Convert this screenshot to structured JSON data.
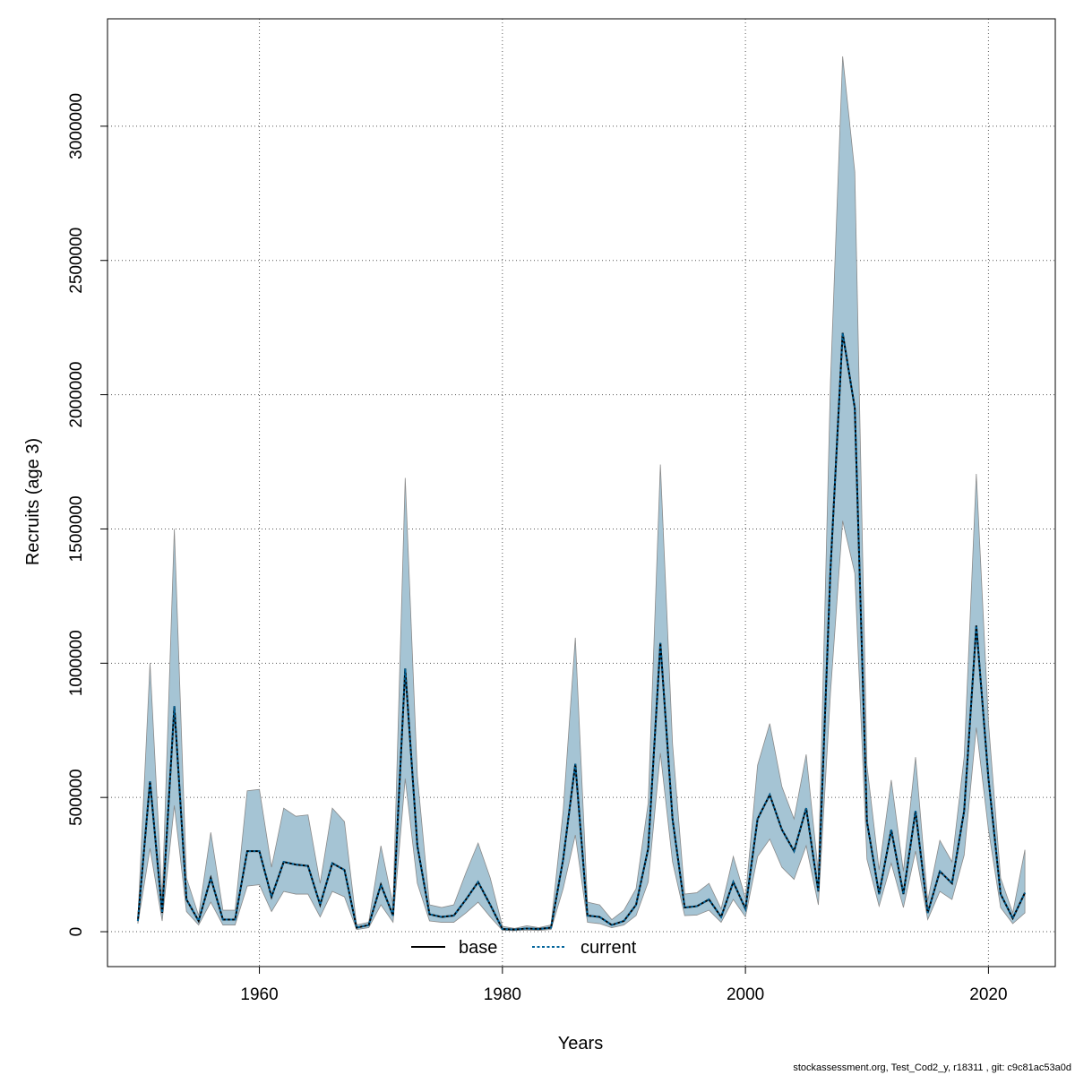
{
  "footer": "stockassessment.org, Test_Cod2_y, r18311 , git: c9c81ac53a0d",
  "colors": {
    "band": "#a5c4d4",
    "band_edge": "#8a8a8a",
    "base": "#000000",
    "current": "#00639a",
    "grid": "#555555"
  },
  "chart_data": {
    "type": "area",
    "xlabel": "Years",
    "ylabel": "Recruits (age 3)",
    "xlim": [
      1947.5,
      2025.5
    ],
    "ylim": [
      -130000,
      3400000
    ],
    "x_ticks": [
      1960,
      1980,
      2000,
      2020
    ],
    "y_ticks": [
      0,
      500000,
      1000000,
      1500000,
      2000000,
      2500000,
      3000000
    ],
    "y_tick_labels": [
      "0",
      "500000",
      "1000000",
      "1500000",
      "2000000",
      "2500000",
      "3000000"
    ],
    "grid": true,
    "legend_position": "bottom-center",
    "legend": [
      {
        "name": "base",
        "style": "solid"
      },
      {
        "name": "current",
        "style": "dotted"
      }
    ],
    "x": [
      1950,
      1951,
      1952,
      1953,
      1954,
      1955,
      1956,
      1957,
      1958,
      1959,
      1960,
      1961,
      1962,
      1963,
      1964,
      1965,
      1966,
      1967,
      1968,
      1969,
      1970,
      1971,
      1972,
      1973,
      1974,
      1975,
      1976,
      1977,
      1978,
      1979,
      1980,
      1981,
      1982,
      1983,
      1984,
      1985,
      1986,
      1987,
      1988,
      1989,
      1990,
      1991,
      1992,
      1993,
      1994,
      1995,
      1996,
      1997,
      1998,
      1999,
      2000,
      2001,
      2002,
      2003,
      2004,
      2005,
      2006,
      2007,
      2008,
      2009,
      2010,
      2011,
      2012,
      2013,
      2014,
      2015,
      2016,
      2017,
      2018,
      2019,
      2020,
      2021,
      2022,
      2023
    ],
    "series": [
      {
        "name": "base",
        "values": [
          40000,
          560000,
          70000,
          840000,
          120000,
          40000,
          200000,
          45000,
          45000,
          300000,
          300000,
          130000,
          260000,
          250000,
          245000,
          100000,
          255000,
          230000,
          15000,
          25000,
          175000,
          60000,
          980000,
          320000,
          65000,
          55000,
          60000,
          120000,
          185000,
          100000,
          10000,
          8000,
          12000,
          10000,
          15000,
          270000,
          625000,
          60000,
          55000,
          25000,
          40000,
          100000,
          310000,
          1075000,
          420000,
          90000,
          95000,
          120000,
          55000,
          185000,
          85000,
          420000,
          510000,
          380000,
          300000,
          460000,
          150000,
          1350000,
          2230000,
          1950000,
          410000,
          140000,
          380000,
          140000,
          450000,
          70000,
          225000,
          180000,
          450000,
          1140000,
          570000,
          140000,
          50000,
          145000
        ]
      },
      {
        "name": "current",
        "values": [
          40000,
          560000,
          70000,
          840000,
          120000,
          40000,
          200000,
          45000,
          45000,
          300000,
          300000,
          130000,
          260000,
          250000,
          245000,
          100000,
          255000,
          230000,
          15000,
          25000,
          175000,
          60000,
          980000,
          320000,
          65000,
          55000,
          60000,
          120000,
          185000,
          100000,
          10000,
          8000,
          12000,
          10000,
          15000,
          270000,
          625000,
          60000,
          55000,
          25000,
          40000,
          100000,
          310000,
          1075000,
          420000,
          90000,
          95000,
          120000,
          55000,
          185000,
          85000,
          420000,
          510000,
          380000,
          300000,
          460000,
          150000,
          1350000,
          2230000,
          1950000,
          410000,
          140000,
          380000,
          140000,
          450000,
          70000,
          225000,
          180000,
          450000,
          1140000,
          570000,
          140000,
          50000,
          145000
        ]
      }
    ],
    "interval_upper": [
      50000,
      1000000,
      120000,
      1500000,
      200000,
      60000,
      370000,
      80000,
      80000,
      525000,
      530000,
      240000,
      460000,
      430000,
      435000,
      180000,
      460000,
      410000,
      25000,
      35000,
      320000,
      100000,
      1690000,
      580000,
      100000,
      90000,
      100000,
      220000,
      330000,
      200000,
      20000,
      12000,
      22000,
      15000,
      25000,
      450000,
      1095000,
      110000,
      100000,
      45000,
      80000,
      160000,
      480000,
      1740000,
      700000,
      140000,
      145000,
      180000,
      85000,
      280000,
      125000,
      620000,
      775000,
      540000,
      420000,
      660000,
      220000,
      2050000,
      3260000,
      2830000,
      620000,
      230000,
      565000,
      225000,
      650000,
      115000,
      340000,
      260000,
      650000,
      1705000,
      780000,
      200000,
      70000,
      305000
    ],
    "interval_lower": [
      30000,
      310000,
      40000,
      470000,
      75000,
      25000,
      110000,
      25000,
      25000,
      170000,
      175000,
      75000,
      150000,
      140000,
      140000,
      55000,
      150000,
      130000,
      8000,
      15000,
      100000,
      35000,
      570000,
      180000,
      40000,
      35000,
      35000,
      70000,
      110000,
      55000,
      5000,
      4000,
      6000,
      5000,
      8000,
      160000,
      360000,
      35000,
      30000,
      15000,
      25000,
      60000,
      185000,
      665000,
      260000,
      60000,
      62000,
      80000,
      35000,
      120000,
      55000,
      280000,
      345000,
      240000,
      195000,
      320000,
      100000,
      890000,
      1530000,
      1335000,
      270000,
      95000,
      255000,
      90000,
      300000,
      45000,
      150000,
      120000,
      285000,
      760000,
      380000,
      90000,
      30000,
      70000
    ]
  }
}
